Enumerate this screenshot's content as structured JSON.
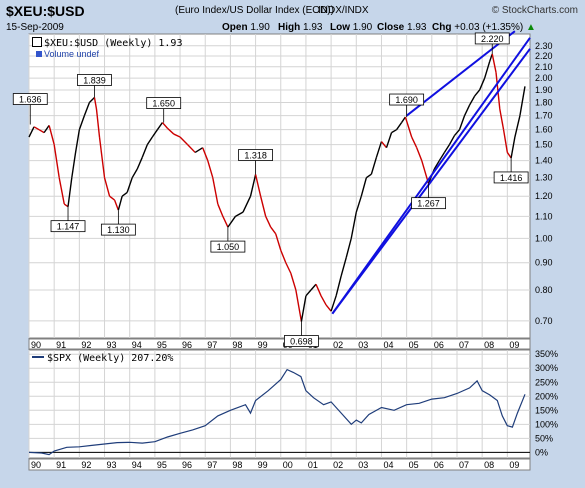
{
  "header": {
    "symbol": "$XEU:$USD",
    "name": "(Euro Index/US Dollar Index (EOD))",
    "exchange": "INDX/INDX",
    "brand": "© StockCharts.com",
    "date": "15-Sep-2009",
    "open_label": "Open",
    "open": "1.90",
    "high_label": "High",
    "high": "1.93",
    "low_label": "Low",
    "low": "1.90",
    "close_label": "Close",
    "close": "1.93",
    "chg_label": "Chg",
    "chg": "+0.03 (+1.35%)",
    "chg_arrow": "▲"
  },
  "top_legend": {
    "text": "$XEU:$USD (Weekly) 1.93",
    "volume": "Volume undef"
  },
  "bottom_legend": {
    "text": "$SPX (Weekly) 207.20%"
  },
  "colors": {
    "background": "#c6d6ea",
    "panel": "#ffffff",
    "grid": "#d4d4d4",
    "trendline": "#1010e0",
    "price_up": "#000000",
    "price_down": "#cc0000",
    "spx_line": "#1f3d7a"
  },
  "chart_data": [
    {
      "type": "line",
      "title": "$XEU:$USD (Weekly) 1.93",
      "y_scale": "log",
      "ylim": [
        0.65,
        2.42
      ],
      "xlim": [
        1990.0,
        2009.9
      ],
      "y_ticks": [
        "0.70",
        "0.80",
        "0.90",
        "1.00",
        "1.10",
        "1.20",
        "1.30",
        "1.40",
        "1.50",
        "1.60",
        "1.70",
        "1.80",
        "1.90",
        "2.00",
        "2.10",
        "2.20",
        "2.30"
      ],
      "x_ticks": [
        "90",
        "91",
        "92",
        "93",
        "94",
        "95",
        "96",
        "97",
        "98",
        "99",
        "00",
        "01",
        "02",
        "03",
        "04",
        "05",
        "06",
        "07",
        "08",
        "09"
      ],
      "series": [
        {
          "x": [
            1990.0,
            1990.2,
            1990.4,
            1990.6,
            1990.8,
            1991.0,
            1991.2,
            1991.4,
            1991.55,
            1991.7,
            1991.85,
            1992.0,
            1992.2,
            1992.4,
            1992.6,
            1992.68,
            1992.8,
            1993.0,
            1993.2,
            1993.4,
            1993.55,
            1993.7,
            1993.9,
            1994.1,
            1994.3,
            1994.5,
            1994.7,
            1994.9,
            1995.1,
            1995.3,
            1995.5,
            1995.75,
            1996.0,
            1996.3,
            1996.6,
            1996.9,
            1997.1,
            1997.3,
            1997.5,
            1997.7,
            1997.9,
            1998.2,
            1998.5,
            1998.8,
            1999.0,
            1999.2,
            1999.4,
            1999.6,
            1999.8,
            2000.0,
            2000.2,
            2000.4,
            2000.6,
            2000.82,
            2001.0,
            2001.2,
            2001.4,
            2001.6,
            2001.8,
            2002.0,
            2002.2,
            2002.4,
            2002.6,
            2002.8,
            2003.0,
            2003.2,
            2003.4,
            2003.6,
            2003.8,
            2004.0,
            2004.2,
            2004.4,
            2004.6,
            2004.8,
            2004.95,
            2005.2,
            2005.4,
            2005.6,
            2005.87,
            2006.1,
            2006.3,
            2006.5,
            2006.7,
            2006.9,
            2007.1,
            2007.3,
            2007.5,
            2007.7,
            2007.9,
            2008.1,
            2008.3,
            2008.4,
            2008.55,
            2008.7,
            2008.85,
            2009.0,
            2009.15,
            2009.3,
            2009.5,
            2009.7
          ],
          "values": [
            1.55,
            1.62,
            1.6,
            1.58,
            1.63,
            1.5,
            1.3,
            1.16,
            1.147,
            1.3,
            1.45,
            1.6,
            1.7,
            1.8,
            1.839,
            1.75,
            1.55,
            1.3,
            1.2,
            1.18,
            1.13,
            1.2,
            1.22,
            1.3,
            1.35,
            1.42,
            1.5,
            1.55,
            1.6,
            1.65,
            1.61,
            1.57,
            1.55,
            1.5,
            1.45,
            1.48,
            1.4,
            1.3,
            1.16,
            1.1,
            1.05,
            1.1,
            1.12,
            1.2,
            1.318,
            1.2,
            1.1,
            1.05,
            1.02,
            0.95,
            0.9,
            0.86,
            0.8,
            0.698,
            0.78,
            0.8,
            0.82,
            0.78,
            0.75,
            0.73,
            0.78,
            0.85,
            0.92,
            1.0,
            1.12,
            1.2,
            1.3,
            1.32,
            1.42,
            1.52,
            1.48,
            1.58,
            1.6,
            1.65,
            1.69,
            1.55,
            1.48,
            1.4,
            1.267,
            1.35,
            1.4,
            1.45,
            1.5,
            1.56,
            1.6,
            1.7,
            1.78,
            1.85,
            1.9,
            2.0,
            2.15,
            2.22,
            2.05,
            1.75,
            1.6,
            1.45,
            1.416,
            1.55,
            1.7,
            1.93
          ]
        }
      ],
      "annotations": [
        "1.636",
        "1.839",
        "1.147",
        "1.130",
        "1.650",
        "1.318",
        "1.050",
        "0.698",
        "1.690",
        "1.267",
        "2.220",
        "1.416"
      ],
      "trendlines": [
        {
          "from": [
            2002.05,
            0.722
          ],
          "to": [
            2009.9,
            2.38
          ]
        },
        {
          "from": [
            2002.05,
            0.722
          ],
          "to": [
            2009.9,
            2.27
          ]
        },
        {
          "from": [
            2005.0,
            1.7
          ],
          "to": [
            2009.3,
            2.45
          ]
        }
      ],
      "grid": true
    },
    {
      "type": "line",
      "title": "$SPX (Weekly) 207.20%",
      "ylim": [
        -20,
        365
      ],
      "xlim": [
        1990.0,
        2009.9
      ],
      "y_ticks": [
        "350%",
        "300%",
        "250%",
        "200%",
        "150%",
        "100%",
        "50%",
        "0%"
      ],
      "x_ticks": [
        "90",
        "91",
        "92",
        "93",
        "94",
        "95",
        "96",
        "97",
        "98",
        "99",
        "00",
        "01",
        "02",
        "03",
        "04",
        "05",
        "06",
        "07",
        "08",
        "09"
      ],
      "series": [
        {
          "name": "$SPX",
          "x": [
            1990.0,
            1990.5,
            1990.8,
            1991.0,
            1991.5,
            1992.0,
            1992.5,
            1993.0,
            1993.5,
            1994.0,
            1994.5,
            1995.0,
            1995.5,
            1996.0,
            1996.5,
            1997.0,
            1997.5,
            1998.0,
            1998.6,
            1998.8,
            1999.0,
            1999.5,
            2000.0,
            2000.25,
            2000.5,
            2000.8,
            2001.0,
            2001.3,
            2001.7,
            2002.0,
            2002.5,
            2002.8,
            2003.0,
            2003.2,
            2003.5,
            2004.0,
            2004.5,
            2005.0,
            2005.5,
            2006.0,
            2006.5,
            2007.0,
            2007.5,
            2007.8,
            2008.0,
            2008.3,
            2008.6,
            2008.8,
            2009.0,
            2009.2,
            2009.4,
            2009.7
          ],
          "values": [
            0,
            -2,
            -8,
            5,
            18,
            20,
            25,
            30,
            35,
            36,
            33,
            38,
            55,
            68,
            80,
            95,
            130,
            150,
            170,
            140,
            185,
            220,
            260,
            295,
            285,
            270,
            220,
            195,
            170,
            180,
            130,
            100,
            115,
            105,
            135,
            160,
            150,
            170,
            175,
            190,
            195,
            210,
            230,
            255,
            220,
            205,
            185,
            130,
            95,
            90,
            140,
            207
          ]
        }
      ],
      "grid": true
    }
  ]
}
